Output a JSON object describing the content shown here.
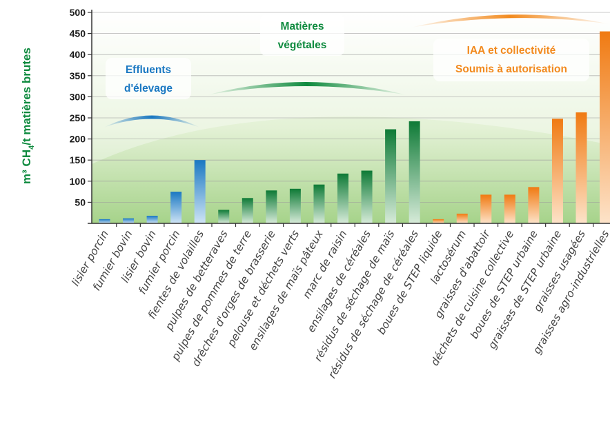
{
  "chart_data": {
    "type": "bar",
    "ylabel_main": "m³ CH",
    "ylabel_sub": "4",
    "ylabel_tail": "/t matières brutes",
    "ylim": [
      0,
      500
    ],
    "yticks": [
      50,
      100,
      150,
      200,
      250,
      300,
      350,
      400,
      450,
      500
    ],
    "categories": [
      "lisier porcin",
      "fumier bovin",
      "lisier bovin",
      "fumier porcin",
      "fientes de volailles",
      "pulpes de betteraves",
      "pulpes de pommes de terre",
      "drêches d'orges de brasserie",
      "pelouse et déchets verts",
      "ensilages de maïs pâteux",
      "marc de raisin",
      "ensilages de céréales",
      "résidus de séchage de maïs",
      "résidus de séchage de céréales",
      "boues de STEP liquide",
      "lactosérum",
      "graisses d'abattoir",
      "déchets de cuisine collective",
      "boues de STEP urbaine",
      "graisses de STEP urbaine",
      "graisses usagées",
      "graisses agro-industrielles"
    ],
    "values": [
      10,
      12,
      18,
      75,
      150,
      32,
      60,
      78,
      82,
      92,
      118,
      125,
      223,
      242,
      10,
      23,
      68,
      68,
      86,
      248,
      263,
      455
    ],
    "groups": [
      {
        "label_line1": "Effluents",
        "label_line2": "d'élevage",
        "color": "#1a78c2",
        "start": 0,
        "end": 4
      },
      {
        "label_line1": "Matières",
        "label_line2": "végétales",
        "color": "#0e8a3e",
        "start": 5,
        "end": 13
      },
      {
        "label_line1": "IAA et collectivité",
        "label_line2": "Soumis à autorisation",
        "color": "#f28a1e",
        "start": 14,
        "end": 21
      }
    ],
    "grid": true,
    "legend": "annotations"
  }
}
